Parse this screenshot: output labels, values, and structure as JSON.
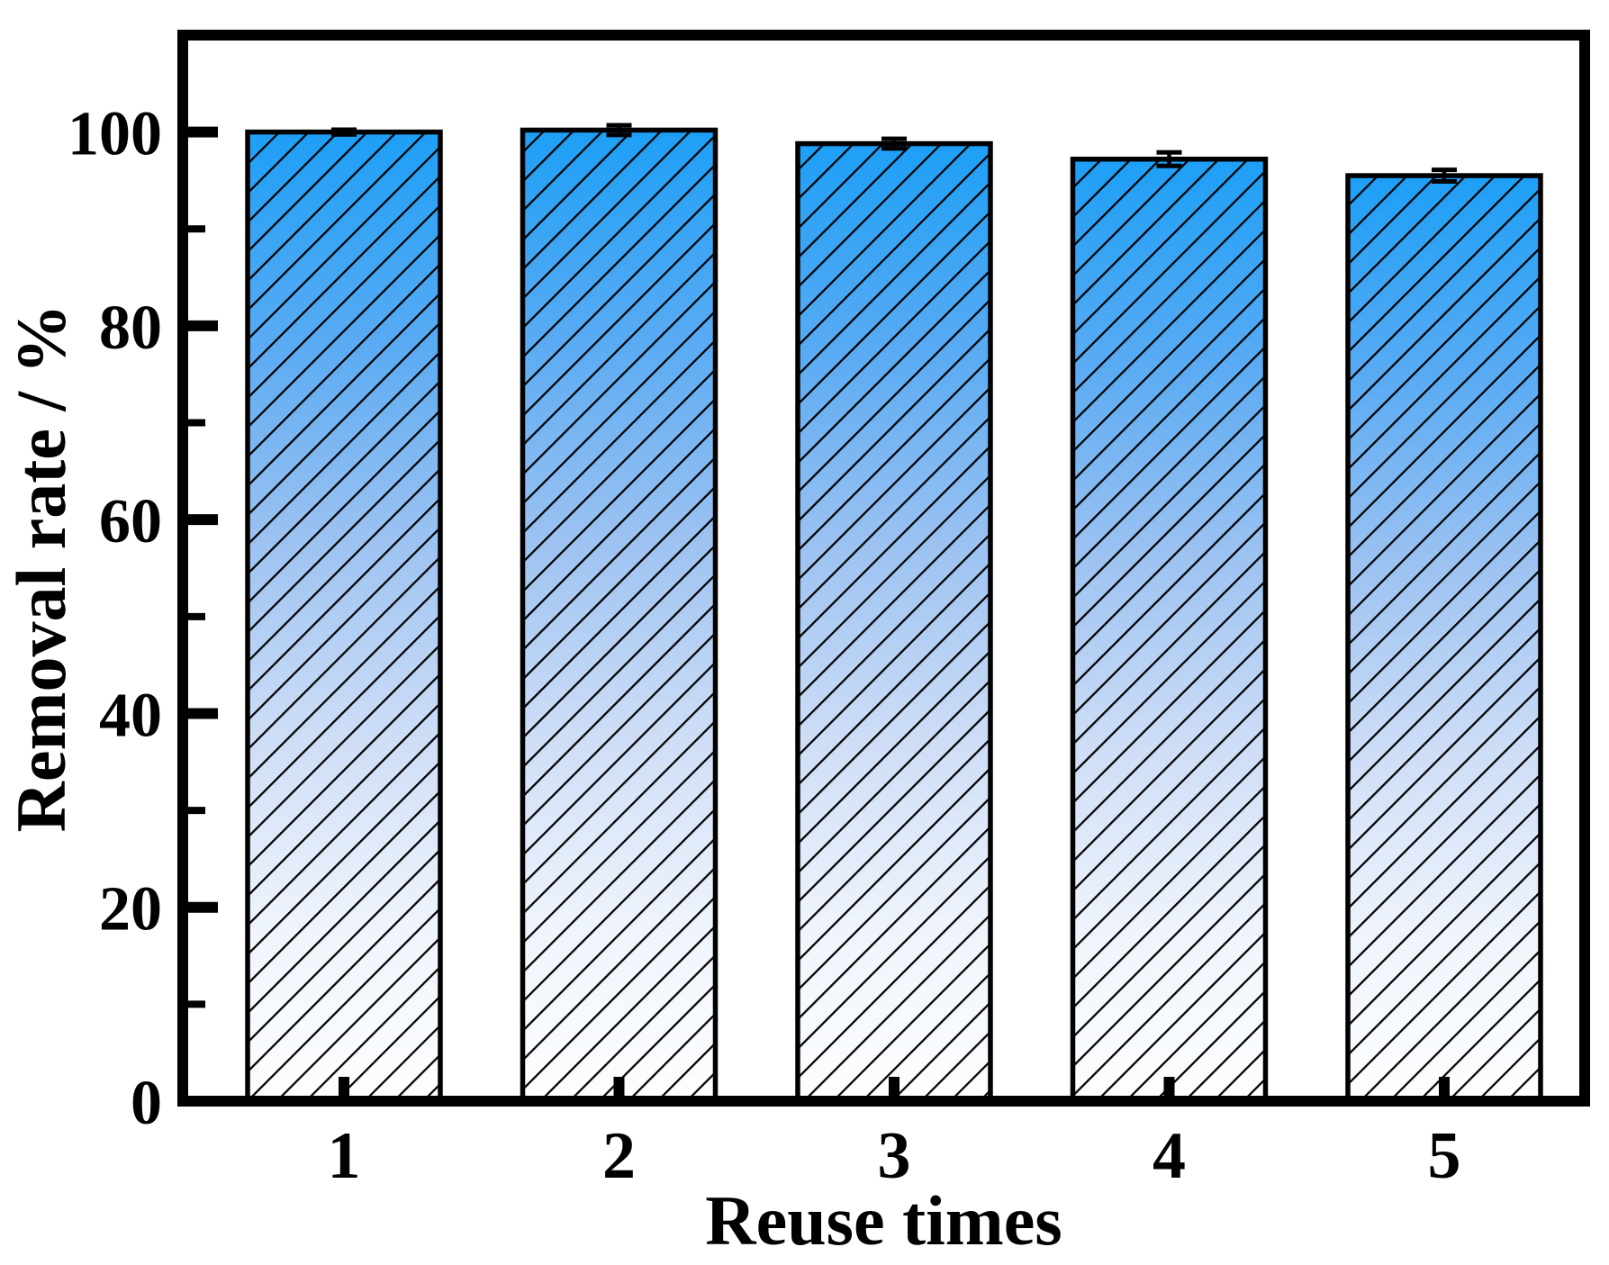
{
  "figure": {
    "background": "#ffffff"
  },
  "chart_data": {
    "type": "bar",
    "title": "",
    "xlabel": "Reuse times",
    "ylabel": "Removal rate / %",
    "categories": [
      "1",
      "2",
      "3",
      "4",
      "5"
    ],
    "values": [
      100.0,
      100.2,
      98.8,
      97.2,
      95.5
    ],
    "errors": [
      0.25,
      0.5,
      0.5,
      0.7,
      0.6
    ],
    "ylim": [
      0,
      110
    ],
    "yticks": [
      0,
      20,
      40,
      60,
      80,
      100
    ],
    "ytick_labels": [
      "0",
      "20",
      "40",
      "60",
      "80",
      "100"
    ],
    "minor_ytick_step": 10,
    "grid": false,
    "legend": null,
    "bar_style": {
      "hatch": "forward-diagonal",
      "hatch_color": "#000000",
      "edge_color": "#000000",
      "gradient_stops": [
        {
          "o": 0.0,
          "c": "#1d9ff6"
        },
        {
          "o": 0.22,
          "c": "#5aabf3"
        },
        {
          "o": 0.42,
          "c": "#9cc2f1"
        },
        {
          "o": 0.62,
          "c": "#cdddf6"
        },
        {
          "o": 0.82,
          "c": "#eff4fc"
        },
        {
          "o": 1.0,
          "c": "#fdfeff"
        }
      ]
    },
    "error_bar_color": "#000000",
    "axis_color": "#000000"
  }
}
